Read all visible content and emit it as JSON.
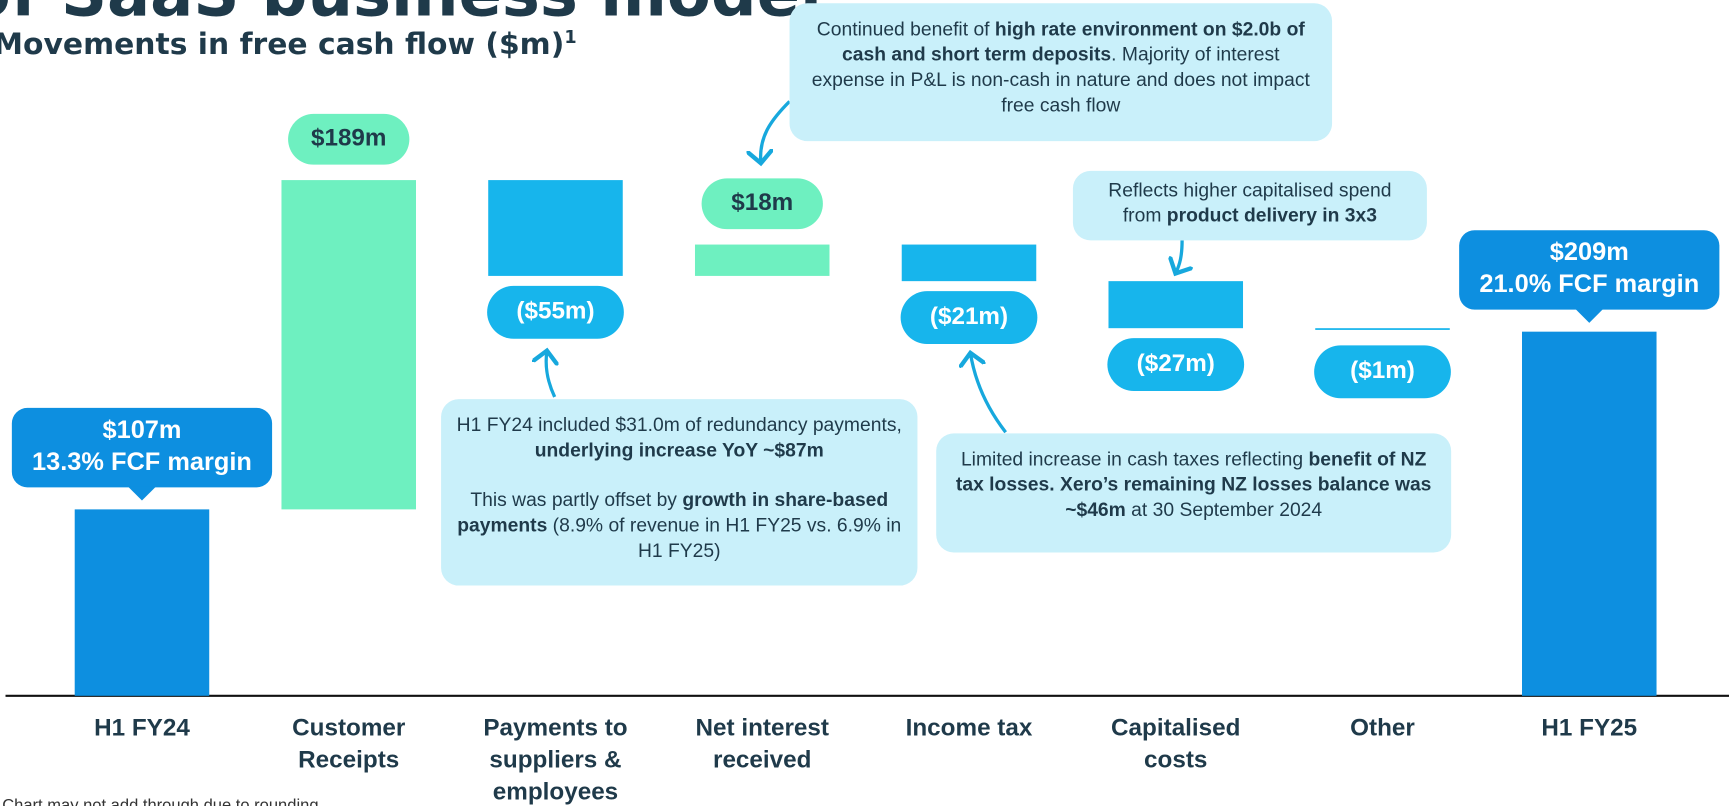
{
  "chart_data": {
    "type": "waterfall",
    "title": "of SaaS business model",
    "subtitle": "Movements in free cash flow ($m)",
    "subtitle_note": "1",
    "categories": [
      "H1 FY24",
      "Customer Receipts",
      "Payments to suppliers & employees",
      "Net interest received",
      "Income tax",
      "Capitalised costs",
      "Other",
      "H1 FY25"
    ],
    "values": [
      107,
      189,
      -55,
      18,
      -21,
      -27,
      -1,
      209
    ],
    "value_labels": [
      "$107m",
      "$189m",
      "($55m)",
      "$18m",
      "($21m)",
      "($27m)",
      "($1m)",
      "$209m"
    ],
    "margin_labels": [
      "13.3% FCF margin",
      null,
      null,
      null,
      null,
      null,
      null,
      "21.0% FCF margin"
    ],
    "measure": [
      "total",
      "relative",
      "relative",
      "relative",
      "relative",
      "relative",
      "relative",
      "total"
    ],
    "colors": {
      "total": "#0d8fe0",
      "increase": "#6ef0c0",
      "decrease": "#17b5ec"
    },
    "ylim": [
      0,
      300
    ],
    "callouts": [
      {
        "paragraphs": [
          [
            {
              "text": "Continued benefit of ",
              "bold": false
            },
            {
              "text": "high rate environment on $2.0b of cash and short term deposits",
              "bold": true
            },
            {
              "text": ". Majority of interest expense in P&L is non-cash in nature and does not impact free cash flow",
              "bold": false
            }
          ]
        ]
      },
      {
        "paragraphs": [
          [
            {
              "text": "Reflects higher capitalised spend from ",
              "bold": false
            },
            {
              "text": "product delivery in 3x3",
              "bold": true
            }
          ]
        ]
      },
      {
        "paragraphs": [
          [
            {
              "text": "H1 FY24 included $31.0m of redundancy payments, ",
              "bold": false
            },
            {
              "text": "underlying increase YoY ~$87m",
              "bold": true
            }
          ],
          [
            {
              "text": "This was partly offset by ",
              "bold": false
            },
            {
              "text": "growth in share-based payments",
              "bold": true
            },
            {
              "text": " (8.9% of revenue in H1 FY25 vs. 6.9% in H1 FY25)",
              "bold": false
            }
          ]
        ]
      },
      {
        "paragraphs": [
          [
            {
              "text": "Limited increase in cash taxes reflecting ",
              "bold": false
            },
            {
              "text": "benefit of NZ tax losses. Xero’s remaining NZ losses balance was ~$46m",
              "bold": true
            },
            {
              "text": " at 30 September 2024",
              "bold": false
            }
          ]
        ]
      }
    ],
    "footnote": "Chart may not add through due to rounding"
  }
}
